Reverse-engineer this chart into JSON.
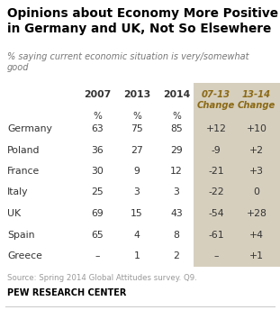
{
  "title": "Opinions about Economy More Positive\nin Germany and UK, Not So Elsewhere",
  "subtitle": "% saying current economic situation is very/somewhat\ngood",
  "countries": [
    "Germany",
    "Poland",
    "France",
    "Italy",
    "UK",
    "Spain",
    "Greece"
  ],
  "col_2007": [
    "63",
    "36",
    "30",
    "25",
    "69",
    "65",
    "–"
  ],
  "col_2013": [
    "75",
    "27",
    "9",
    "3",
    "15",
    "4",
    "1"
  ],
  "col_2014": [
    "85",
    "29",
    "12",
    "3",
    "43",
    "8",
    "2"
  ],
  "col_change0713": [
    "+12",
    "-9",
    "-21",
    "-22",
    "-54",
    "-61",
    "–"
  ],
  "col_change1314": [
    "+10",
    "+2",
    "+3",
    "0",
    "+28",
    "+4",
    "+1"
  ],
  "source": "Source: Spring 2014 Global Attitudes survey. Q9.",
  "brand": "PEW RESEARCH CENTER",
  "bg_color": "#ffffff",
  "shaded_bg": "#d6cfbe",
  "title_color": "#000000",
  "subtitle_color": "#777777",
  "source_color": "#999999",
  "brand_color": "#000000",
  "header_italic_color": "#8B6914",
  "data_color": "#333333",
  "figsize": [
    3.11,
    3.44
  ],
  "dpi": 100
}
